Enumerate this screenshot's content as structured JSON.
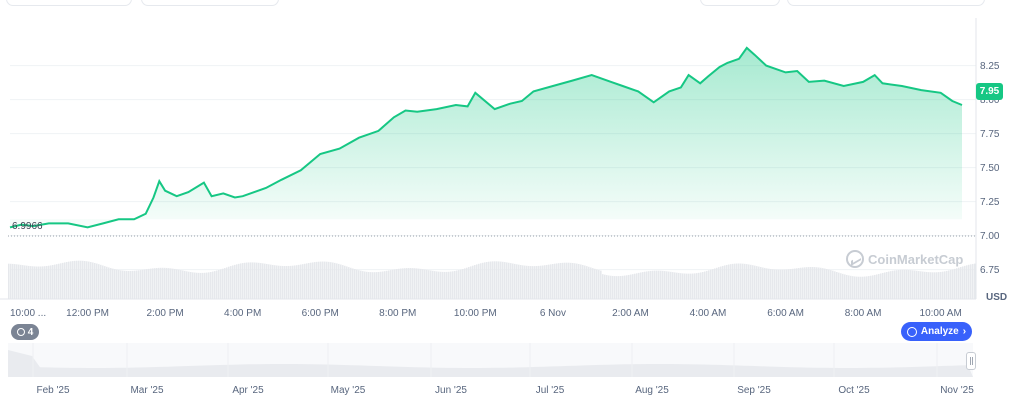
{
  "chart_data": {
    "type": "area",
    "currency_label": "USD",
    "current_price_label": "7.95",
    "open_price_label": "6.9966",
    "watermark": "CoinMarketCap",
    "ylim": [
      6.6,
      8.6
    ],
    "yticks": [
      "8.25",
      "8.00",
      "7.75",
      "7.50",
      "7.25",
      "7.00",
      "6.75"
    ],
    "ytick_values": [
      8.25,
      8.0,
      7.75,
      7.5,
      7.25,
      7.0,
      6.75
    ],
    "xticks": [
      "10:00 ...",
      "12:00 PM",
      "2:00 PM",
      "4:00 PM",
      "6:00 PM",
      "8:00 PM",
      "10:00 PM",
      "6 Nov",
      "2:00 AM",
      "4:00 AM",
      "6:00 AM",
      "8:00 AM",
      "10:00 AM"
    ],
    "xtick_hours": [
      0,
      2,
      4,
      6,
      8,
      10,
      12,
      14,
      16,
      18,
      20,
      22,
      24
    ],
    "x_range_hours": [
      0,
      24.55
    ],
    "series": [
      {
        "hours": [
          0,
          0.3,
          0.6,
          1.0,
          1.5,
          2.0,
          2.4,
          2.8,
          3.2,
          3.5,
          3.7,
          3.85,
          4.0,
          4.3,
          4.6,
          5.0,
          5.2,
          5.5,
          5.8,
          6.0,
          6.3,
          6.6,
          7.0,
          7.5,
          8.0,
          8.5,
          9.0,
          9.5,
          9.9,
          10.2,
          10.5,
          11.0,
          11.5,
          11.8,
          12.0,
          12.5,
          12.9,
          13.2,
          13.5,
          14.0,
          14.5,
          15.0,
          15.5,
          15.8,
          16.2,
          16.6,
          17.0,
          17.3,
          17.5,
          17.8,
          18.0,
          18.3,
          18.5,
          18.8,
          19.0,
          19.2,
          19.5,
          20.0,
          20.3,
          20.6,
          21.0,
          21.5,
          22.0,
          22.3,
          22.5,
          23.0,
          23.5,
          24.0,
          24.3,
          24.55
        ],
        "values": [
          7.06,
          7.08,
          7.07,
          7.09,
          7.09,
          7.06,
          7.09,
          7.12,
          7.12,
          7.16,
          7.28,
          7.4,
          7.33,
          7.29,
          7.32,
          7.39,
          7.29,
          7.31,
          7.28,
          7.29,
          7.32,
          7.35,
          7.41,
          7.48,
          7.6,
          7.64,
          7.72,
          7.77,
          7.87,
          7.92,
          7.91,
          7.93,
          7.96,
          7.95,
          8.05,
          7.93,
          7.97,
          7.99,
          8.06,
          8.1,
          8.14,
          8.18,
          8.13,
          8.1,
          8.06,
          7.98,
          8.06,
          8.09,
          8.18,
          8.12,
          8.17,
          8.24,
          8.27,
          8.3,
          8.38,
          8.33,
          8.25,
          8.2,
          8.21,
          8.13,
          8.14,
          8.1,
          8.13,
          8.18,
          8.12,
          8.1,
          8.07,
          8.05,
          7.99,
          7.96
        ]
      }
    ],
    "navigator": {
      "labels": [
        "Feb '25",
        "Mar '25",
        "Apr '25",
        "May '25",
        "Jun '25",
        "Jul '25",
        "Aug '25",
        "Sep '25",
        "Oct '25",
        "Nov '25"
      ]
    }
  },
  "controls": {
    "history_count": "4",
    "analyze_label": "Analyze",
    "analyze_chevron": "›"
  }
}
